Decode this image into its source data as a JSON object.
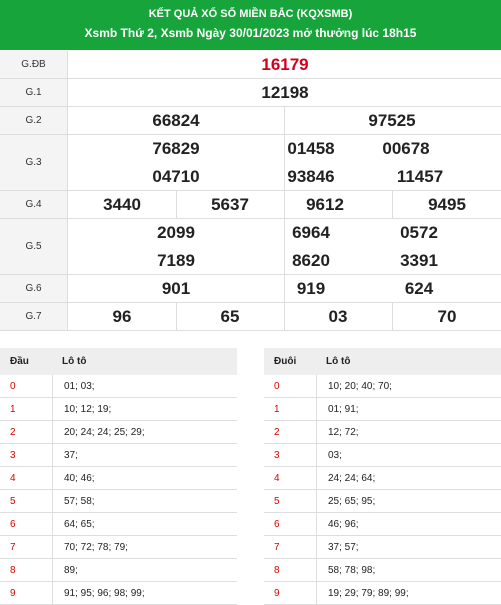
{
  "header": {
    "title": "KẾT QUẢ XỔ SỐ MIỀN BẮC (KQXSMB)",
    "subtitle": "Xsmb Thứ 2, Xsmb Ngày 30/01/2023 mở thưởng lúc 18h15"
  },
  "results": [
    {
      "label": "G.ĐB",
      "numbers": [
        "16179"
      ]
    },
    {
      "label": "G.1",
      "numbers": [
        "12198"
      ]
    },
    {
      "label": "G.2",
      "numbers": [
        "66824",
        "97525"
      ]
    },
    {
      "label": "G.3",
      "numbers": [
        "76829",
        "01458",
        "00678",
        "04710",
        "93846",
        "11457"
      ]
    },
    {
      "label": "G.4",
      "numbers": [
        "3440",
        "5637",
        "9612",
        "9495"
      ]
    },
    {
      "label": "G.5",
      "numbers": [
        "2099",
        "6964",
        "0572",
        "7189",
        "8620",
        "3391"
      ]
    },
    {
      "label": "G.6",
      "numbers": [
        "901",
        "919",
        "624"
      ]
    },
    {
      "label": "G.7",
      "numbers": [
        "96",
        "65",
        "03",
        "70"
      ]
    }
  ],
  "loto_head": {
    "headers": [
      "Đầu",
      "Lô tô"
    ],
    "rows": [
      [
        "0",
        "01; 03;"
      ],
      [
        "1",
        "10; 12; 19;"
      ],
      [
        "2",
        "20; 24; 24; 25; 29;"
      ],
      [
        "3",
        "37;"
      ],
      [
        "4",
        "40; 46;"
      ],
      [
        "5",
        "57; 58;"
      ],
      [
        "6",
        "64; 65;"
      ],
      [
        "7",
        "70; 72; 78; 79;"
      ],
      [
        "8",
        "89;"
      ],
      [
        "9",
        "91; 95; 96; 98; 99;"
      ]
    ]
  },
  "loto_tail": {
    "headers": [
      "Đuôi",
      "Lô tô"
    ],
    "rows": [
      [
        "0",
        "10; 20; 40; 70;"
      ],
      [
        "1",
        "01; 91;"
      ],
      [
        "2",
        "12; 72;"
      ],
      [
        "3",
        "03;"
      ],
      [
        "4",
        "24; 24; 64;"
      ],
      [
        "5",
        "25; 65; 95;"
      ],
      [
        "6",
        "46; 96;"
      ],
      [
        "7",
        "37; 57;"
      ],
      [
        "8",
        "58; 78; 98;"
      ],
      [
        "9",
        "19; 29; 79; 89; 99;"
      ]
    ]
  }
}
